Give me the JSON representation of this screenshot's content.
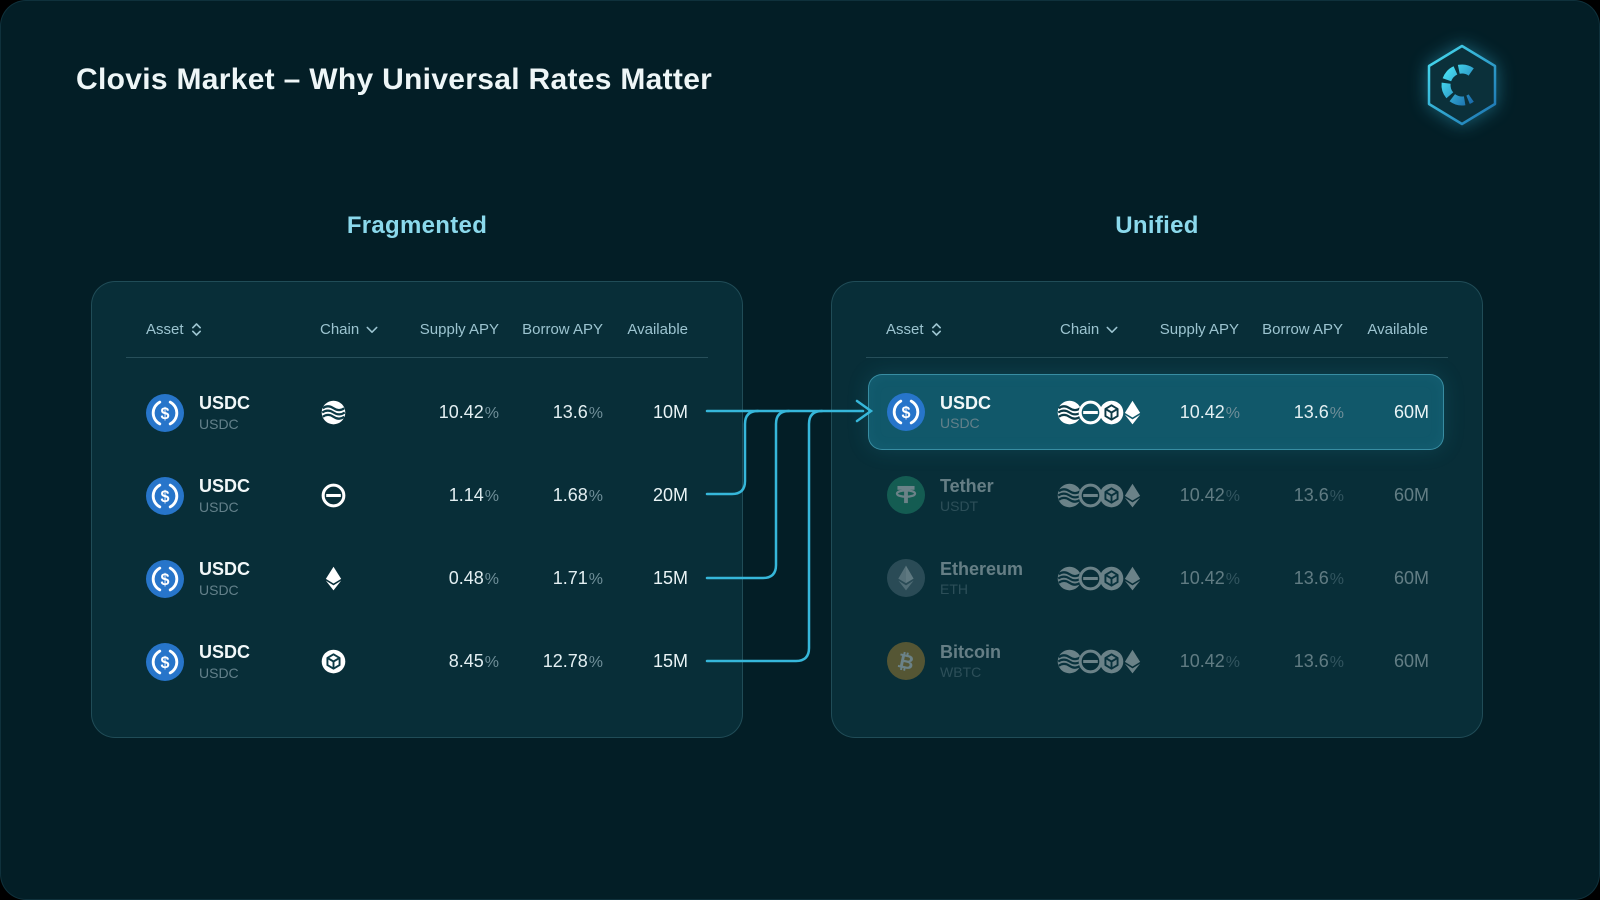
{
  "page_title": "Clovis Market – Why Universal Rates Matter",
  "logo": {
    "letter": "C"
  },
  "unit": "%",
  "accent_color": "#38b7da",
  "fragmented": {
    "title": "Fragmented",
    "columns": {
      "asset": "Asset",
      "chain": "Chain",
      "supply": "Supply APY",
      "borrow": "Borrow APY",
      "available": "Available"
    },
    "rows": [
      {
        "asset_name": "USDC",
        "asset_symbol": "USDC",
        "asset_icon": "usdc",
        "chain_icon": "wave",
        "supply_apy": "10.42",
        "borrow_apy": "13.6",
        "available": "10M"
      },
      {
        "asset_name": "USDC",
        "asset_symbol": "USDC",
        "asset_icon": "usdc",
        "chain_icon": "theta",
        "supply_apy": "1.14",
        "borrow_apy": "1.68",
        "available": "20M"
      },
      {
        "asset_name": "USDC",
        "asset_symbol": "USDC",
        "asset_icon": "usdc",
        "chain_icon": "eth",
        "supply_apy": "0.48",
        "borrow_apy": "1.71",
        "available": "15M"
      },
      {
        "asset_name": "USDC",
        "asset_symbol": "USDC",
        "asset_icon": "usdc",
        "chain_icon": "cube",
        "supply_apy": "8.45",
        "borrow_apy": "12.78",
        "available": "15M"
      }
    ]
  },
  "unified": {
    "title": "Unified",
    "columns": {
      "asset": "Asset",
      "chain": "Chain",
      "supply": "Supply APY",
      "borrow": "Borrow APY",
      "available": "Available"
    },
    "rows": [
      {
        "asset_name": "USDC",
        "asset_symbol": "USDC",
        "asset_icon": "usdc",
        "chain_icons": [
          "wave",
          "theta",
          "cube",
          "eth"
        ],
        "supply_apy": "10.42",
        "borrow_apy": "13.6",
        "available": "60M",
        "highlighted": true
      },
      {
        "asset_name": "Tether",
        "asset_symbol": "USDT",
        "asset_icon": "tether",
        "chain_icons": [
          "wave",
          "theta",
          "cube",
          "eth"
        ],
        "supply_apy": "10.42",
        "borrow_apy": "13.6",
        "available": "60M",
        "dimmed": true
      },
      {
        "asset_name": "Ethereum",
        "asset_symbol": "ETH",
        "asset_icon": "ethereum",
        "chain_icons": [
          "wave",
          "theta",
          "cube",
          "eth"
        ],
        "supply_apy": "10.42",
        "borrow_apy": "13.6",
        "available": "60M",
        "dimmed": true
      },
      {
        "asset_name": "Bitcoin",
        "asset_symbol": "WBTC",
        "asset_icon": "bitcoin",
        "chain_icons": [
          "wave",
          "theta",
          "cube",
          "eth"
        ],
        "supply_apy": "10.42",
        "borrow_apy": "13.6",
        "available": "60M",
        "dimmed": true
      }
    ]
  }
}
